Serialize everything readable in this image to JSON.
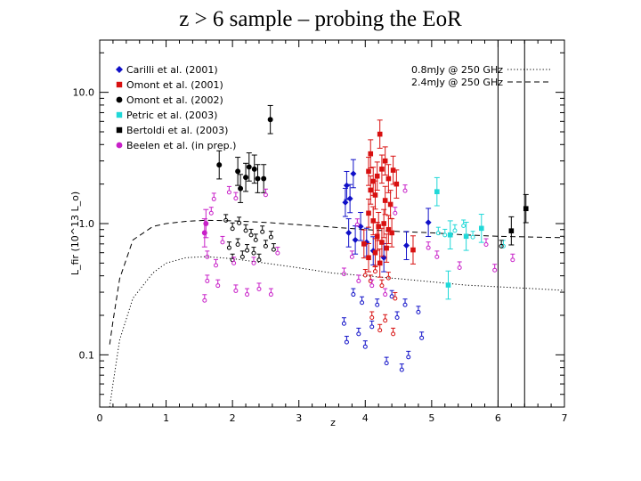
{
  "slide": {
    "title": "z > 6 sample – probing the EoR"
  },
  "colors": {
    "carilli": "#1010c8",
    "omont2001": "#d81010",
    "omont2002": "#000000",
    "petric": "#20d8d8",
    "bertoldi": "#000000",
    "beelen": "#c820c8"
  },
  "chart_data": {
    "type": "scatter",
    "title": "z > 6 sample – probing the EoR",
    "xlabel": "z",
    "ylabel": "L_fir (10^13 L_o)",
    "y_scale": "log",
    "xlim": [
      0,
      7
    ],
    "ylim": [
      0.04,
      25
    ],
    "x_ticks": [
      0,
      1,
      2,
      3,
      4,
      5,
      6,
      7
    ],
    "x_tick_labels": [
      "0",
      "1",
      "2",
      "3",
      "4",
      "5",
      "6",
      "7"
    ],
    "y_ticks": [
      0.1,
      1.0,
      10.0
    ],
    "y_tick_labels": [
      "0.1",
      "1.0",
      "10.0"
    ],
    "legend_position": "top-left",
    "vertical_lines": [
      6.0,
      6.4
    ],
    "limit_curves": [
      {
        "name": "0.8mJy @ 250 GHz",
        "style": "dotted",
        "x": [
          0.15,
          0.2,
          0.3,
          0.5,
          0.8,
          1.0,
          1.3,
          1.6,
          2.0,
          2.5,
          3.0,
          3.5,
          4.0,
          4.5,
          5.0,
          5.5,
          6.0,
          6.5,
          7.0
        ],
        "y": [
          0.04,
          0.06,
          0.13,
          0.27,
          0.42,
          0.5,
          0.55,
          0.56,
          0.54,
          0.5,
          0.46,
          0.42,
          0.4,
          0.38,
          0.36,
          0.34,
          0.33,
          0.32,
          0.31
        ]
      },
      {
        "name": "2.4mJy @ 250 GHz",
        "style": "dashed",
        "x": [
          0.15,
          0.2,
          0.3,
          0.5,
          0.8,
          1.0,
          1.3,
          1.6,
          2.0,
          2.5,
          3.0,
          3.5,
          4.0,
          4.5,
          5.0,
          5.5,
          6.0,
          6.5,
          7.0
        ],
        "y": [
          0.12,
          0.18,
          0.38,
          0.75,
          0.95,
          1.0,
          1.04,
          1.06,
          1.05,
          1.02,
          0.98,
          0.94,
          0.9,
          0.87,
          0.85,
          0.82,
          0.8,
          0.79,
          0.78
        ]
      }
    ],
    "series": [
      {
        "name": "Carilli et al. (2001)",
        "marker": "diamond",
        "color": "#1010c8",
        "detections": [
          {
            "x": 3.72,
            "y": 1.95
          },
          {
            "x": 3.77,
            "y": 1.55
          },
          {
            "x": 3.82,
            "y": 2.4
          },
          {
            "x": 3.75,
            "y": 0.85
          },
          {
            "x": 3.85,
            "y": 0.75
          },
          {
            "x": 3.93,
            "y": 0.95
          },
          {
            "x": 4.02,
            "y": 0.72
          },
          {
            "x": 4.12,
            "y": 0.62
          },
          {
            "x": 4.28,
            "y": 0.55
          },
          {
            "x": 4.62,
            "y": 0.68
          },
          {
            "x": 4.95,
            "y": 1.02
          },
          {
            "x": 3.7,
            "y": 1.45
          }
        ],
        "upper_limits": [
          {
            "x": 3.68,
            "y": 0.18
          },
          {
            "x": 3.72,
            "y": 0.13
          },
          {
            "x": 3.9,
            "y": 0.15
          },
          {
            "x": 4.0,
            "y": 0.12
          },
          {
            "x": 4.1,
            "y": 0.17
          },
          {
            "x": 4.32,
            "y": 0.09
          },
          {
            "x": 4.55,
            "y": 0.08
          },
          {
            "x": 4.65,
            "y": 0.1
          },
          {
            "x": 4.85,
            "y": 0.14
          },
          {
            "x": 3.82,
            "y": 0.3
          },
          {
            "x": 3.95,
            "y": 0.26
          },
          {
            "x": 4.18,
            "y": 0.25
          },
          {
            "x": 4.48,
            "y": 0.2
          },
          {
            "x": 4.6,
            "y": 0.25
          },
          {
            "x": 4.8,
            "y": 0.22
          },
          {
            "x": 4.4,
            "y": 0.29
          }
        ]
      },
      {
        "name": "Omont et al. (2001)",
        "marker": "square",
        "color": "#d81010",
        "detections": [
          {
            "x": 4.22,
            "y": 4.8
          },
          {
            "x": 4.08,
            "y": 3.4
          },
          {
            "x": 4.3,
            "y": 3.0
          },
          {
            "x": 4.05,
            "y": 2.5
          },
          {
            "x": 4.12,
            "y": 2.1
          },
          {
            "x": 4.18,
            "y": 2.3
          },
          {
            "x": 4.25,
            "y": 2.6
          },
          {
            "x": 4.35,
            "y": 2.2
          },
          {
            "x": 4.42,
            "y": 2.55
          },
          {
            "x": 4.47,
            "y": 2.0
          },
          {
            "x": 4.08,
            "y": 1.8
          },
          {
            "x": 4.15,
            "y": 1.65
          },
          {
            "x": 4.3,
            "y": 1.5
          },
          {
            "x": 4.38,
            "y": 1.4
          },
          {
            "x": 4.05,
            "y": 1.2
          },
          {
            "x": 4.12,
            "y": 1.05
          },
          {
            "x": 4.2,
            "y": 0.95
          },
          {
            "x": 4.28,
            "y": 1.0
          },
          {
            "x": 4.35,
            "y": 0.9
          },
          {
            "x": 4.18,
            "y": 0.8
          },
          {
            "x": 4.25,
            "y": 0.72
          },
          {
            "x": 4.32,
            "y": 0.65
          },
          {
            "x": 4.4,
            "y": 0.85
          },
          {
            "x": 4.05,
            "y": 0.55
          },
          {
            "x": 4.15,
            "y": 0.6
          },
          {
            "x": 4.22,
            "y": 0.5
          },
          {
            "x": 4.72,
            "y": 0.63
          },
          {
            "x": 3.98,
            "y": 0.7
          }
        ],
        "upper_limits": [
          {
            "x": 4.0,
            "y": 0.42
          },
          {
            "x": 4.08,
            "y": 0.38
          },
          {
            "x": 4.15,
            "y": 0.45
          },
          {
            "x": 4.25,
            "y": 0.35
          },
          {
            "x": 4.35,
            "y": 0.4
          },
          {
            "x": 4.45,
            "y": 0.28
          },
          {
            "x": 4.1,
            "y": 0.2
          },
          {
            "x": 4.22,
            "y": 0.16
          },
          {
            "x": 4.3,
            "y": 0.19
          },
          {
            "x": 4.42,
            "y": 0.15
          }
        ]
      },
      {
        "name": "Omont et al. (2002)",
        "marker": "circle",
        "color": "#000000",
        "detections": [
          {
            "x": 2.57,
            "y": 6.2
          },
          {
            "x": 1.8,
            "y": 2.8
          },
          {
            "x": 2.08,
            "y": 2.5
          },
          {
            "x": 2.25,
            "y": 2.7
          },
          {
            "x": 2.33,
            "y": 2.6
          },
          {
            "x": 2.2,
            "y": 2.25
          },
          {
            "x": 2.38,
            "y": 2.2
          },
          {
            "x": 2.47,
            "y": 2.2
          },
          {
            "x": 2.12,
            "y": 1.85
          }
        ],
        "upper_limits": [
          {
            "x": 1.9,
            "y": 1.1
          },
          {
            "x": 2.0,
            "y": 0.95
          },
          {
            "x": 2.1,
            "y": 1.05
          },
          {
            "x": 2.2,
            "y": 0.92
          },
          {
            "x": 2.28,
            "y": 0.85
          },
          {
            "x": 2.35,
            "y": 0.78
          },
          {
            "x": 2.45,
            "y": 0.9
          },
          {
            "x": 2.58,
            "y": 0.82
          },
          {
            "x": 1.95,
            "y": 0.68
          },
          {
            "x": 2.08,
            "y": 0.72
          },
          {
            "x": 2.22,
            "y": 0.65
          },
          {
            "x": 2.32,
            "y": 0.62
          },
          {
            "x": 2.5,
            "y": 0.7
          },
          {
            "x": 2.62,
            "y": 0.66
          },
          {
            "x": 2.0,
            "y": 0.55
          },
          {
            "x": 2.15,
            "y": 0.58
          },
          {
            "x": 2.4,
            "y": 0.55
          }
        ]
      },
      {
        "name": "Petric et al. (2003)",
        "marker": "square",
        "color": "#20d8d8",
        "detections": [
          {
            "x": 5.08,
            "y": 1.75
          },
          {
            "x": 5.75,
            "y": 0.92
          },
          {
            "x": 5.28,
            "y": 0.82
          },
          {
            "x": 5.52,
            "y": 0.8
          },
          {
            "x": 5.25,
            "y": 0.34
          }
        ],
        "upper_limits": [
          {
            "x": 5.1,
            "y": 0.88
          },
          {
            "x": 5.2,
            "y": 0.85
          },
          {
            "x": 5.35,
            "y": 0.92
          },
          {
            "x": 5.48,
            "y": 1.0
          },
          {
            "x": 5.62,
            "y": 0.82
          },
          {
            "x": 6.08,
            "y": 0.7
          }
        ]
      },
      {
        "name": "Bertoldi et al. (2003)",
        "marker": "square",
        "color": "#000000",
        "detections": [
          {
            "x": 6.42,
            "y": 1.3
          },
          {
            "x": 6.2,
            "y": 0.88
          }
        ],
        "upper_limits": [
          {
            "x": 6.05,
            "y": 0.7
          }
        ]
      },
      {
        "name": "Beelen et al. (in prep.)",
        "marker": "circle",
        "color": "#c820c8",
        "detections": [
          {
            "x": 1.6,
            "y": 1.0
          },
          {
            "x": 1.58,
            "y": 0.85
          }
        ],
        "upper_limits": [
          {
            "x": 1.72,
            "y": 1.6
          },
          {
            "x": 1.68,
            "y": 1.25
          },
          {
            "x": 1.85,
            "y": 0.75
          },
          {
            "x": 1.62,
            "y": 0.58
          },
          {
            "x": 1.75,
            "y": 0.5
          },
          {
            "x": 2.02,
            "y": 0.52
          },
          {
            "x": 2.32,
            "y": 0.52
          },
          {
            "x": 2.68,
            "y": 0.62
          },
          {
            "x": 1.62,
            "y": 0.38
          },
          {
            "x": 1.78,
            "y": 0.35
          },
          {
            "x": 2.05,
            "y": 0.32
          },
          {
            "x": 2.22,
            "y": 0.3
          },
          {
            "x": 2.58,
            "y": 0.3
          },
          {
            "x": 1.58,
            "y": 0.27
          },
          {
            "x": 2.4,
            "y": 0.33
          },
          {
            "x": 1.95,
            "y": 1.8
          },
          {
            "x": 2.05,
            "y": 1.62
          },
          {
            "x": 2.5,
            "y": 1.72
          },
          {
            "x": 3.68,
            "y": 0.43
          },
          {
            "x": 3.9,
            "y": 0.38
          },
          {
            "x": 3.88,
            "y": 1.02
          },
          {
            "x": 4.45,
            "y": 1.25
          },
          {
            "x": 4.6,
            "y": 1.85
          },
          {
            "x": 4.95,
            "y": 0.68
          },
          {
            "x": 5.08,
            "y": 0.58
          },
          {
            "x": 5.42,
            "y": 0.48
          },
          {
            "x": 5.95,
            "y": 0.46
          },
          {
            "x": 5.82,
            "y": 0.72
          },
          {
            "x": 6.22,
            "y": 0.55
          },
          {
            "x": 4.1,
            "y": 0.35
          },
          {
            "x": 3.8,
            "y": 0.58
          },
          {
            "x": 4.3,
            "y": 0.3
          }
        ]
      }
    ]
  }
}
